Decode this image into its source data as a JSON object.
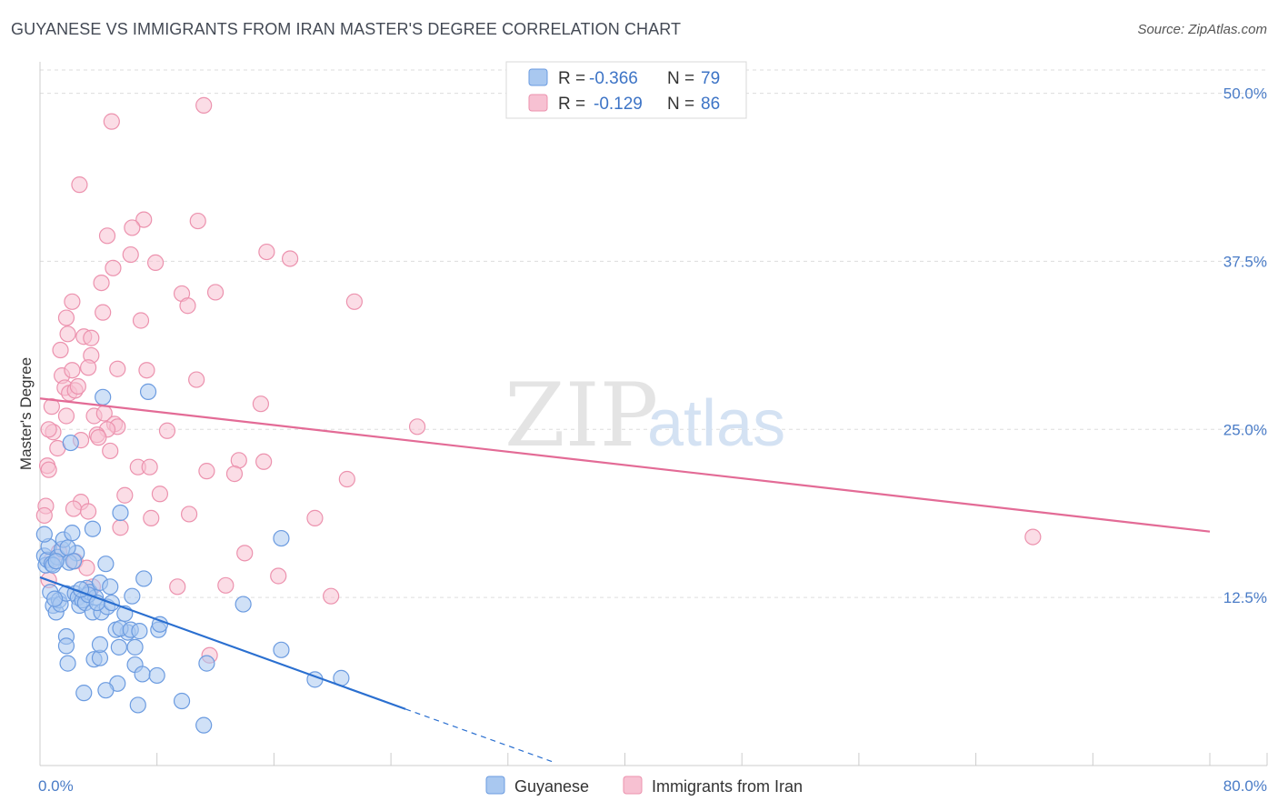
{
  "title": "GUYANESE VS IMMIGRANTS FROM IRAN MASTER'S DEGREE CORRELATION CHART",
  "source": "Source: ZipAtlas.com",
  "watermark": {
    "zip": "ZIP",
    "atlas": "atlas"
  },
  "colors": {
    "blue_fill": "#a9c8f0",
    "blue_stroke": "#6b9be0",
    "blue_line": "#2a6fd0",
    "pink_fill": "#f7c1d2",
    "pink_stroke": "#ec92ae",
    "pink_line": "#e36b96",
    "tick_text": "#4a7cc7",
    "grid": "#dddddd"
  },
  "legend": {
    "rows": [
      {
        "r_label": "R =",
        "r_value": "-0.366",
        "n_label": "N =",
        "n_value": "79"
      },
      {
        "r_label": "R =",
        "r_value": "-0.129",
        "n_label": "N =",
        "n_value": "86"
      }
    ]
  },
  "chart_data": {
    "type": "scatter",
    "title": "GUYANESE VS IMMIGRANTS FROM IRAN MASTER'S DEGREE CORRELATION CHART",
    "xlabel": "",
    "ylabel": "Master's Degree",
    "xlim": [
      0,
      80
    ],
    "ylim": [
      0,
      52
    ],
    "x_tick_labels": [
      "0.0%",
      "80.0%"
    ],
    "y_ticks": [
      12.5,
      25.0,
      37.5,
      50.0
    ],
    "y_tick_labels": [
      "12.5%",
      "25.0%",
      "37.5%",
      "50.0%"
    ],
    "grid": true,
    "legend_position": "top-center",
    "series": [
      {
        "name": "Guyanese",
        "R": -0.366,
        "N": 79,
        "trend": {
          "x0": 0,
          "y0": 14.0,
          "x1": 25,
          "y1": 4.2,
          "dash_to_x": 35,
          "dash_to_y": 0.3
        },
        "points": [
          [
            0.3,
            15.6
          ],
          [
            0.4,
            14.9
          ],
          [
            0.5,
            15.3
          ],
          [
            0.6,
            16.3
          ],
          [
            0.3,
            17.2
          ],
          [
            0.8,
            15.0
          ],
          [
            1.2,
            15.5
          ],
          [
            1.5,
            16.1
          ],
          [
            1.6,
            16.8
          ],
          [
            2.2,
            17.3
          ],
          [
            2.5,
            15.8
          ],
          [
            2.0,
            15.1
          ],
          [
            1.9,
            16.2
          ],
          [
            0.7,
            12.9
          ],
          [
            0.9,
            11.9
          ],
          [
            1.1,
            11.4
          ],
          [
            1.3,
            12.3
          ],
          [
            1.4,
            12.0
          ],
          [
            1.8,
            12.8
          ],
          [
            2.4,
            12.8
          ],
          [
            2.6,
            12.5
          ],
          [
            2.7,
            11.9
          ],
          [
            2.9,
            12.3
          ],
          [
            3.1,
            12.1
          ],
          [
            3.2,
            13.2
          ],
          [
            3.4,
            12.9
          ],
          [
            3.6,
            11.4
          ],
          [
            4.2,
            11.4
          ],
          [
            4.6,
            11.8
          ],
          [
            3.8,
            12.5
          ],
          [
            4.9,
            12.1
          ],
          [
            4.1,
            13.6
          ],
          [
            4.8,
            13.3
          ],
          [
            4.5,
            15.0
          ],
          [
            3.6,
            17.6
          ],
          [
            5.5,
            18.8
          ],
          [
            6.0,
            9.9
          ],
          [
            5.2,
            10.1
          ],
          [
            5.5,
            10.2
          ],
          [
            6.2,
            10.1
          ],
          [
            6.8,
            10.0
          ],
          [
            8.1,
            10.1
          ],
          [
            8.2,
            10.5
          ],
          [
            7.1,
            13.9
          ],
          [
            7.4,
            27.8
          ],
          [
            4.3,
            27.4
          ],
          [
            2.1,
            24.0
          ],
          [
            1.8,
            9.6
          ],
          [
            1.8,
            8.9
          ],
          [
            1.9,
            7.6
          ],
          [
            3.7,
            7.9
          ],
          [
            4.1,
            8.0
          ],
          [
            4.1,
            9.0
          ],
          [
            5.4,
            8.8
          ],
          [
            6.5,
            8.8
          ],
          [
            6.5,
            7.5
          ],
          [
            7.0,
            6.8
          ],
          [
            8.0,
            6.7
          ],
          [
            5.3,
            6.1
          ],
          [
            3.0,
            5.4
          ],
          [
            4.5,
            5.6
          ],
          [
            6.7,
            4.5
          ],
          [
            9.7,
            4.8
          ],
          [
            11.4,
            7.6
          ],
          [
            11.2,
            3.0
          ],
          [
            13.9,
            12.0
          ],
          [
            16.5,
            8.6
          ],
          [
            16.5,
            16.9
          ],
          [
            18.8,
            6.4
          ],
          [
            20.6,
            6.5
          ],
          [
            0.9,
            14.9
          ],
          [
            1.1,
            15.2
          ],
          [
            2.3,
            15.2
          ],
          [
            3.3,
            12.7
          ],
          [
            3.9,
            12.1
          ],
          [
            5.8,
            11.3
          ],
          [
            6.3,
            12.6
          ],
          [
            2.8,
            13.1
          ],
          [
            1.0,
            12.4
          ]
        ]
      },
      {
        "name": "Immigrants from Iran",
        "R": -0.129,
        "N": 86,
        "trend": {
          "x0": 0,
          "y0": 27.3,
          "x1": 80,
          "y1": 17.4
        },
        "points": [
          [
            11.2,
            49.1
          ],
          [
            4.9,
            47.9
          ],
          [
            2.7,
            43.2
          ],
          [
            7.1,
            40.6
          ],
          [
            10.8,
            40.5
          ],
          [
            6.3,
            40.0
          ],
          [
            4.6,
            39.4
          ],
          [
            6.2,
            38.0
          ],
          [
            15.5,
            38.2
          ],
          [
            17.1,
            37.7
          ],
          [
            7.9,
            37.4
          ],
          [
            5.0,
            37.0
          ],
          [
            4.2,
            35.9
          ],
          [
            9.7,
            35.1
          ],
          [
            12.0,
            35.2
          ],
          [
            10.1,
            34.2
          ],
          [
            21.5,
            34.5
          ],
          [
            2.2,
            34.5
          ],
          [
            4.3,
            33.7
          ],
          [
            1.8,
            33.3
          ],
          [
            6.9,
            33.1
          ],
          [
            1.9,
            32.1
          ],
          [
            3.0,
            31.9
          ],
          [
            3.5,
            31.8
          ],
          [
            1.4,
            30.9
          ],
          [
            3.5,
            30.5
          ],
          [
            1.5,
            29.0
          ],
          [
            2.2,
            29.4
          ],
          [
            3.3,
            29.6
          ],
          [
            5.3,
            29.5
          ],
          [
            7.3,
            29.4
          ],
          [
            10.7,
            28.7
          ],
          [
            1.7,
            28.1
          ],
          [
            2.0,
            27.7
          ],
          [
            2.4,
            27.9
          ],
          [
            0.8,
            26.7
          ],
          [
            15.1,
            26.9
          ],
          [
            1.8,
            26.0
          ],
          [
            3.7,
            26.0
          ],
          [
            4.4,
            26.2
          ],
          [
            5.1,
            25.4
          ],
          [
            5.3,
            25.2
          ],
          [
            4.6,
            25.0
          ],
          [
            3.9,
            24.6
          ],
          [
            0.9,
            24.8
          ],
          [
            0.6,
            25.0
          ],
          [
            8.7,
            24.9
          ],
          [
            2.8,
            24.2
          ],
          [
            1.2,
            23.6
          ],
          [
            4.8,
            23.4
          ],
          [
            25.8,
            25.2
          ],
          [
            0.5,
            22.3
          ],
          [
            0.6,
            22.0
          ],
          [
            6.7,
            22.2
          ],
          [
            7.5,
            22.2
          ],
          [
            13.6,
            22.7
          ],
          [
            15.3,
            22.6
          ],
          [
            11.4,
            21.9
          ],
          [
            13.3,
            21.7
          ],
          [
            21.0,
            21.3
          ],
          [
            5.8,
            20.1
          ],
          [
            8.2,
            20.2
          ],
          [
            2.8,
            19.6
          ],
          [
            0.4,
            19.3
          ],
          [
            0.3,
            18.6
          ],
          [
            2.3,
            19.1
          ],
          [
            3.3,
            18.9
          ],
          [
            10.2,
            18.7
          ],
          [
            7.6,
            18.4
          ],
          [
            18.8,
            18.4
          ],
          [
            5.5,
            17.7
          ],
          [
            14.0,
            15.8
          ],
          [
            0.8,
            15.3
          ],
          [
            2.4,
            15.2
          ],
          [
            3.2,
            14.7
          ],
          [
            0.6,
            13.8
          ],
          [
            16.3,
            14.1
          ],
          [
            12.7,
            13.4
          ],
          [
            9.4,
            13.3
          ],
          [
            3.6,
            13.3
          ],
          [
            19.9,
            12.6
          ],
          [
            11.6,
            8.2
          ],
          [
            67.9,
            17.0
          ],
          [
            1.3,
            15.9
          ],
          [
            2.6,
            28.2
          ],
          [
            4.0,
            24.4
          ]
        ]
      }
    ]
  },
  "bottom_legend": [
    "Guyanese",
    "Immigrants from Iran"
  ]
}
